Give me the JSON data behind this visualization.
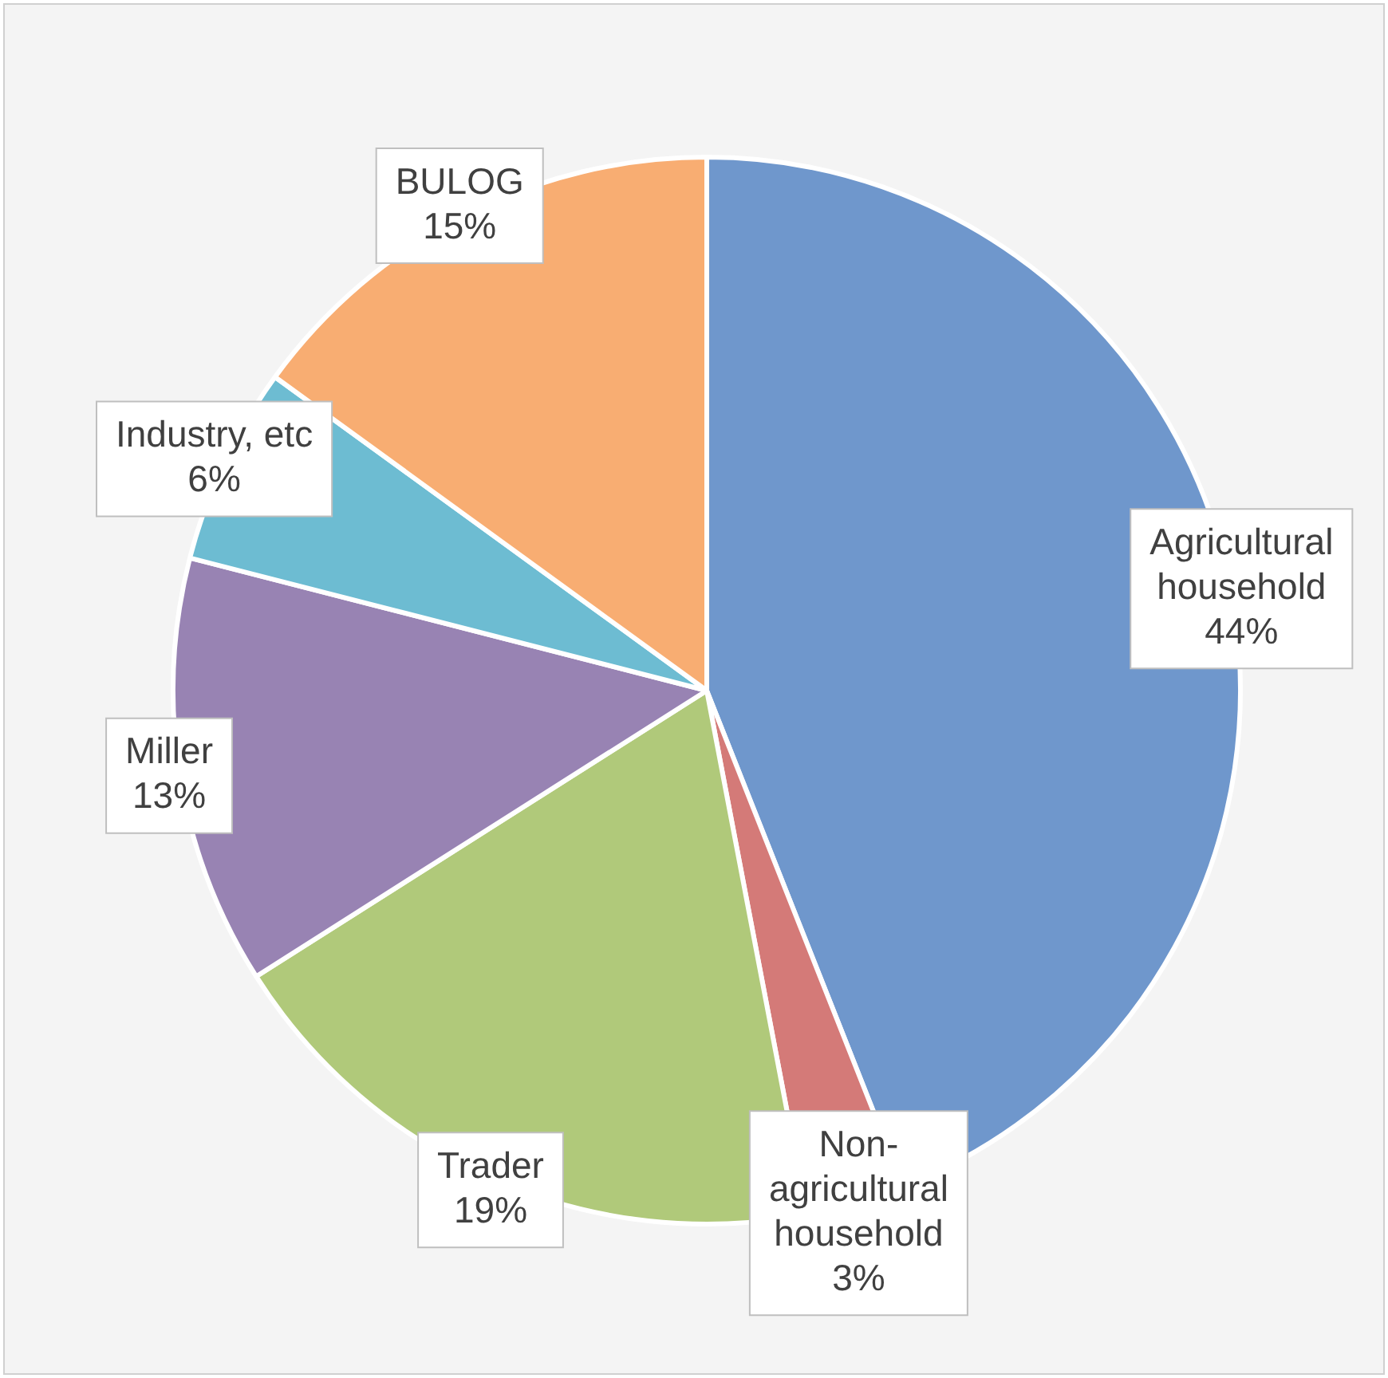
{
  "chart_data": {
    "type": "pie",
    "categories": [
      "Agricultural household",
      "Non-agricultural household",
      "Trader",
      "Miller",
      "Industry, etc",
      "BULOG"
    ],
    "values": [
      44,
      3,
      19,
      13,
      6,
      15
    ],
    "colors": [
      "#6f97cc",
      "#d47a78",
      "#b0c97a",
      "#9883b3",
      "#6dbcd2",
      "#f8ad72"
    ],
    "value_labels": [
      "44%",
      "3%",
      "19%",
      "13%",
      "6%",
      "15%"
    ],
    "legend": false
  }
}
